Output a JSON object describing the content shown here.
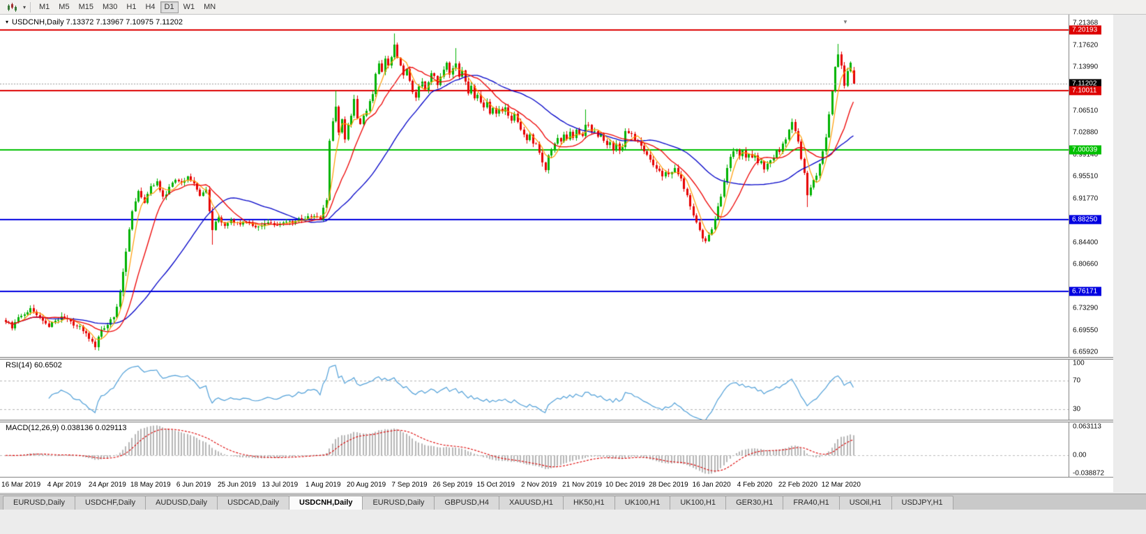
{
  "toolbar": {
    "periods": [
      "M1",
      "M5",
      "M15",
      "M30",
      "H1",
      "H4",
      "D1",
      "W1",
      "MN"
    ],
    "active_period": "D1",
    "chart_type_icon": "candlestick-chart-icon"
  },
  "chart": {
    "title_text": "USDCNH,Daily  7.13372 7.13967 7.10975 7.11202",
    "symbol": "USDCNH",
    "timeframe": "Daily"
  },
  "indicators": {
    "rsi": {
      "name": "RSI",
      "period": 14,
      "value": "60.6502",
      "label_text": "RSI(14) 60.6502",
      "axis_labels": [
        "100",
        "70",
        "30"
      ],
      "levels": [
        70,
        30
      ],
      "scale": [
        15,
        100
      ],
      "line_color": "#4f9fd8"
    },
    "macd": {
      "name": "MACD",
      "params": "12,26,9",
      "macd_value": "0.038136",
      "signal_value": "0.029113",
      "label_text": "MACD(12,26,9) 0.038136 0.029113",
      "axis_labels": [
        "0.063113",
        "0.00",
        "-0.038872"
      ],
      "histogram_color": "#b6b6b6",
      "signal_color": "#dd0000"
    }
  },
  "chart_data": {
    "type": "candlestick",
    "symbol": "USDCNH",
    "timeframe": "Daily",
    "bar_count": 276,
    "last_candle": {
      "open": 7.13372,
      "high": 7.13967,
      "low": 7.10975,
      "close": 7.11202
    },
    "candle_up_color": "#00b200",
    "candle_down_color": "#e60000",
    "price_axis": {
      "range_top": 7.2196,
      "range_bottom": 6.6509,
      "ticks": [
        "7.21368",
        "7.17620",
        "7.13990",
        "7.06510",
        "7.02880",
        "6.99140",
        "6.95510",
        "6.91770",
        "6.84400",
        "6.80660",
        "6.73290",
        "6.69550",
        "6.65920"
      ]
    },
    "price_labels": [
      {
        "value": "7.20193",
        "price": 7.20193,
        "bg": "#dd0000"
      },
      {
        "value": "7.11202",
        "price": 7.11202,
        "bg": "#000000"
      },
      {
        "value": "7.10011",
        "price": 7.10011,
        "bg": "#dd0000"
      },
      {
        "value": "7.00039",
        "price": 7.00039,
        "bg": "#00c000"
      },
      {
        "value": "6.88250",
        "price": 6.8825,
        "bg": "#0000e0"
      },
      {
        "value": "6.76171",
        "price": 6.76171,
        "bg": "#0000e0"
      }
    ],
    "horizontal_lines": [
      {
        "price": 7.20193,
        "color": "#dd0000",
        "width": 2,
        "style": "solid"
      },
      {
        "price": 7.10011,
        "color": "#dd0000",
        "width": 2,
        "style": "solid"
      },
      {
        "price": 7.00039,
        "color": "#00c000",
        "width": 2,
        "style": "solid"
      },
      {
        "price": 6.8825,
        "color": "#0000e0",
        "width": 2,
        "style": "solid"
      },
      {
        "price": 6.76171,
        "color": "#0000e0",
        "width": 2,
        "style": "solid"
      },
      {
        "price": 7.11202,
        "color": "#9a9a9a",
        "width": 1,
        "style": "dotted",
        "role": "bid-price-line"
      }
    ],
    "moving_averages": [
      {
        "period": 5,
        "color": "#ff9b00"
      },
      {
        "period": 13,
        "color": "#ee0000"
      },
      {
        "period": 34,
        "color": "#0000c8"
      }
    ],
    "x_axis_dates": [
      "16 Mar 2019",
      "4 Apr 2019",
      "24 Apr 2019",
      "18 May 2019",
      "6 Jun 2019",
      "25 Jun 2019",
      "13 Jul 2019",
      "1 Aug 2019",
      "20 Aug 2019",
      "7 Sep 2019",
      "26 Sep 2019",
      "15 Oct 2019",
      "2 Nov 2019",
      "21 Nov 2019",
      "10 Dec 2019",
      "28 Dec 2019",
      "16 Jan 2020",
      "4 Feb 2020",
      "22 Feb 2020",
      "12 Mar 2020"
    ],
    "first_label_bar_index": 5,
    "label_bar_spacing": 14,
    "price_anchors": [
      [
        0,
        6.712
      ],
      [
        2,
        6.7
      ],
      [
        4,
        6.716
      ],
      [
        6,
        6.724
      ],
      [
        8,
        6.73
      ],
      [
        10,
        6.722
      ],
      [
        12,
        6.712
      ],
      [
        14,
        6.704
      ],
      [
        16,
        6.712
      ],
      [
        18,
        6.72
      ],
      [
        20,
        6.712
      ],
      [
        22,
        6.705
      ],
      [
        24,
        6.7
      ],
      [
        26,
        6.69
      ],
      [
        28,
        6.676
      ],
      [
        29,
        6.67
      ],
      [
        30,
        6.684
      ],
      [
        31,
        6.696
      ],
      [
        33,
        6.706
      ],
      [
        35,
        6.716
      ],
      [
        37,
        6.76
      ],
      [
        39,
        6.83
      ],
      [
        41,
        6.9
      ],
      [
        43,
        6.928
      ],
      [
        45,
        6.912
      ],
      [
        47,
        6.936
      ],
      [
        49,
        6.946
      ],
      [
        51,
        6.92
      ],
      [
        53,
        6.936
      ],
      [
        55,
        6.95
      ],
      [
        57,
        6.943
      ],
      [
        59,
        6.953
      ],
      [
        61,
        6.94
      ],
      [
        63,
        6.924
      ],
      [
        65,
        6.93
      ],
      [
        66,
        6.896
      ],
      [
        67,
        6.864
      ],
      [
        68,
        6.88
      ],
      [
        69,
        6.888
      ],
      [
        71,
        6.873
      ],
      [
        73,
        6.88
      ],
      [
        75,
        6.874
      ],
      [
        78,
        6.88
      ],
      [
        81,
        6.868
      ],
      [
        84,
        6.878
      ],
      [
        87,
        6.873
      ],
      [
        90,
        6.88
      ],
      [
        93,
        6.877
      ],
      [
        96,
        6.884
      ],
      [
        99,
        6.888
      ],
      [
        102,
        6.884
      ],
      [
        104,
        6.916
      ],
      [
        105,
        7.018
      ],
      [
        106,
        7.048
      ],
      [
        107,
        7.072
      ],
      [
        108,
        7.03
      ],
      [
        109,
        7.052
      ],
      [
        110,
        7.02
      ],
      [
        111,
        7.04
      ],
      [
        112,
        7.06
      ],
      [
        113,
        7.084
      ],
      [
        114,
        7.056
      ],
      [
        115,
        7.042
      ],
      [
        116,
        7.058
      ],
      [
        117,
        7.064
      ],
      [
        118,
        7.08
      ],
      [
        119,
        7.094
      ],
      [
        120,
        7.126
      ],
      [
        121,
        7.144
      ],
      [
        122,
        7.13
      ],
      [
        123,
        7.152
      ],
      [
        124,
        7.14
      ],
      [
        125,
        7.158
      ],
      [
        126,
        7.176
      ],
      [
        127,
        7.156
      ],
      [
        128,
        7.142
      ],
      [
        129,
        7.128
      ],
      [
        130,
        7.138
      ],
      [
        131,
        7.116
      ],
      [
        132,
        7.096
      ],
      [
        133,
        7.086
      ],
      [
        134,
        7.108
      ],
      [
        135,
        7.118
      ],
      [
        136,
        7.102
      ],
      [
        137,
        7.116
      ],
      [
        138,
        7.128
      ],
      [
        139,
        7.122
      ],
      [
        140,
        7.108
      ],
      [
        141,
        7.122
      ],
      [
        142,
        7.134
      ],
      [
        143,
        7.144
      ],
      [
        144,
        7.128
      ],
      [
        145,
        7.138
      ],
      [
        146,
        7.148
      ],
      [
        147,
        7.122
      ],
      [
        148,
        7.132
      ],
      [
        149,
        7.112
      ],
      [
        150,
        7.098
      ],
      [
        151,
        7.108
      ],
      [
        152,
        7.088
      ],
      [
        153,
        7.094
      ],
      [
        154,
        7.078
      ],
      [
        155,
        7.068
      ],
      [
        156,
        7.078
      ],
      [
        157,
        7.062
      ],
      [
        158,
        7.07
      ],
      [
        159,
        7.058
      ],
      [
        160,
        7.068
      ],
      [
        161,
        7.062
      ],
      [
        162,
        7.072
      ],
      [
        163,
        7.056
      ],
      [
        164,
        7.05
      ],
      [
        165,
        7.062
      ],
      [
        166,
        7.046
      ],
      [
        167,
        7.036
      ],
      [
        168,
        7.026
      ],
      [
        169,
        7.018
      ],
      [
        170,
        7.024
      ],
      [
        171,
        7.008
      ],
      [
        172,
        7.012
      ],
      [
        173,
        6.998
      ],
      [
        174,
        6.98
      ],
      [
        175,
        6.968
      ],
      [
        176,
        6.988
      ],
      [
        177,
        7.0
      ],
      [
        178,
        7.01
      ],
      [
        179,
        7.018
      ],
      [
        180,
        7.012
      ],
      [
        181,
        7.024
      ],
      [
        182,
        7.018
      ],
      [
        183,
        7.028
      ],
      [
        184,
        7.022
      ],
      [
        185,
        7.034
      ],
      [
        186,
        7.028
      ],
      [
        187,
        7.022
      ],
      [
        188,
        7.04
      ],
      [
        189,
        7.044
      ],
      [
        190,
        7.028
      ],
      [
        191,
        7.034
      ],
      [
        192,
        7.022
      ],
      [
        193,
        7.028
      ],
      [
        194,
        7.016
      ],
      [
        195,
        7.008
      ],
      [
        196,
        7.014
      ],
      [
        197,
        7.002
      ],
      [
        198,
        7.008
      ],
      [
        199,
        6.998
      ],
      [
        200,
        7.004
      ],
      [
        201,
        7.03
      ],
      [
        203,
        7.024
      ],
      [
        205,
        7.012
      ],
      [
        207,
        6.996
      ],
      [
        209,
        6.982
      ],
      [
        211,
        6.97
      ],
      [
        213,
        6.958
      ],
      [
        215,
        6.96
      ],
      [
        217,
        6.97
      ],
      [
        219,
        6.95
      ],
      [
        221,
        6.922
      ],
      [
        223,
        6.892
      ],
      [
        225,
        6.864
      ],
      [
        226,
        6.852
      ],
      [
        227,
        6.846
      ],
      [
        228,
        6.858
      ],
      [
        229,
        6.868
      ],
      [
        230,
        6.884
      ],
      [
        231,
        6.902
      ],
      [
        232,
        6.924
      ],
      [
        233,
        6.948
      ],
      [
        234,
        6.97
      ],
      [
        235,
        6.986
      ],
      [
        236,
        6.996
      ],
      [
        237,
        7.002
      ],
      [
        238,
        6.992
      ],
      [
        239,
        7.0
      ],
      [
        240,
        6.988
      ],
      [
        241,
        6.996
      ],
      [
        242,
        6.988
      ],
      [
        243,
        6.992
      ],
      [
        244,
        6.978
      ],
      [
        245,
        6.984
      ],
      [
        246,
        6.968
      ],
      [
        247,
        6.976
      ],
      [
        248,
        6.982
      ],
      [
        249,
        6.99
      ],
      [
        250,
        6.998
      ],
      [
        251,
        6.994
      ],
      [
        252,
        7.01
      ],
      [
        253,
        7.02
      ],
      [
        254,
        7.032
      ],
      [
        255,
        7.044
      ],
      [
        256,
        7.03
      ],
      [
        257,
        7.012
      ],
      [
        258,
        6.986
      ],
      [
        259,
        6.958
      ],
      [
        260,
        6.924
      ],
      [
        261,
        6.936
      ],
      [
        262,
        6.946
      ],
      [
        263,
        6.956
      ],
      [
        264,
        6.976
      ],
      [
        265,
        6.996
      ],
      [
        266,
        7.02
      ],
      [
        267,
        7.058
      ],
      [
        268,
        7.098
      ],
      [
        269,
        7.142
      ],
      [
        270,
        7.164
      ],
      [
        271,
        7.14
      ],
      [
        272,
        7.106
      ],
      [
        273,
        7.13
      ],
      [
        274,
        7.146
      ],
      [
        275,
        7.11202
      ]
    ],
    "wick_overrides": [
      [
        29,
        "low",
        6.663
      ],
      [
        67,
        "low",
        6.84
      ],
      [
        107,
        "high",
        7.1
      ],
      [
        126,
        "high",
        7.196
      ],
      [
        146,
        "high",
        7.172
      ],
      [
        175,
        "low",
        6.962
      ],
      [
        188,
        "high",
        7.068
      ],
      [
        227,
        "low",
        6.842
      ],
      [
        260,
        "low",
        6.903
      ],
      [
        270,
        "high",
        7.178
      ]
    ]
  },
  "tabs": {
    "items": [
      "EURUSD,Daily",
      "USDCHF,Daily",
      "AUDUSD,Daily",
      "USDCAD,Daily",
      "USDCNH,Daily",
      "EURUSD,Daily",
      "GBPUSD,H4",
      "XAUUSD,H1",
      "HK50,H1",
      "UK100,H1",
      "UK100,H1",
      "GER30,H1",
      "FRA40,H1",
      "USOil,H1",
      "USDJPY,H1"
    ],
    "active_index": 4
  }
}
